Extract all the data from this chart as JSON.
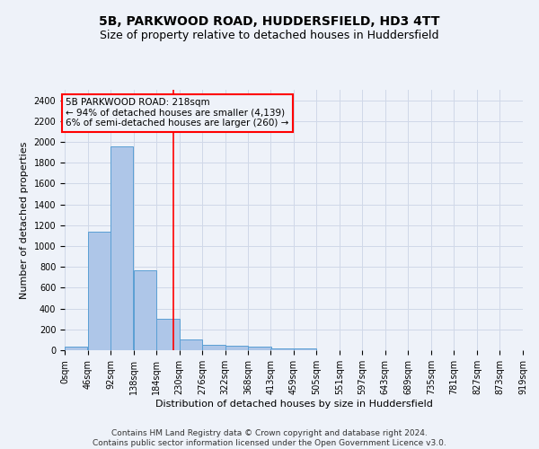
{
  "title1": "5B, PARKWOOD ROAD, HUDDERSFIELD, HD3 4TT",
  "title2": "Size of property relative to detached houses in Huddersfield",
  "xlabel": "Distribution of detached houses by size in Huddersfield",
  "ylabel": "Number of detached properties",
  "footer1": "Contains HM Land Registry data © Crown copyright and database right 2024.",
  "footer2": "Contains public sector information licensed under the Open Government Licence v3.0.",
  "bar_left_edges": [
    0,
    46,
    92,
    138,
    184,
    230,
    276,
    322,
    368,
    413,
    459,
    505,
    551,
    597,
    643,
    689,
    735,
    781,
    827,
    873
  ],
  "bar_heights": [
    35,
    1140,
    1960,
    770,
    300,
    100,
    50,
    45,
    35,
    20,
    20,
    0,
    0,
    0,
    0,
    0,
    0,
    0,
    0,
    0
  ],
  "bin_width": 46,
  "bar_color": "#aec6e8",
  "bar_edge_color": "#5a9fd4",
  "grid_color": "#d0d8e8",
  "vline_x": 218,
  "vline_color": "red",
  "annotation_line1": "5B PARKWOOD ROAD: 218sqm",
  "annotation_line2": "← 94% of detached houses are smaller (4,139)",
  "annotation_line3": "6% of semi-detached houses are larger (260) →",
  "xlim": [
    0,
    919
  ],
  "ylim": [
    0,
    2500
  ],
  "yticks": [
    0,
    200,
    400,
    600,
    800,
    1000,
    1200,
    1400,
    1600,
    1800,
    2000,
    2200,
    2400
  ],
  "xtick_labels": [
    "0sqm",
    "46sqm",
    "92sqm",
    "138sqm",
    "184sqm",
    "230sqm",
    "276sqm",
    "322sqm",
    "368sqm",
    "413sqm",
    "459sqm",
    "505sqm",
    "551sqm",
    "597sqm",
    "643sqm",
    "689sqm",
    "735sqm",
    "781sqm",
    "827sqm",
    "873sqm",
    "919sqm"
  ],
  "xtick_positions": [
    0,
    46,
    92,
    138,
    184,
    230,
    276,
    322,
    368,
    413,
    459,
    505,
    551,
    597,
    643,
    689,
    735,
    781,
    827,
    873,
    919
  ],
  "bg_color": "#eef2f9",
  "title_fontsize": 10,
  "subtitle_fontsize": 9,
  "axis_label_fontsize": 8,
  "tick_fontsize": 7,
  "footer_fontsize": 6.5,
  "annotation_fontsize": 7.5
}
